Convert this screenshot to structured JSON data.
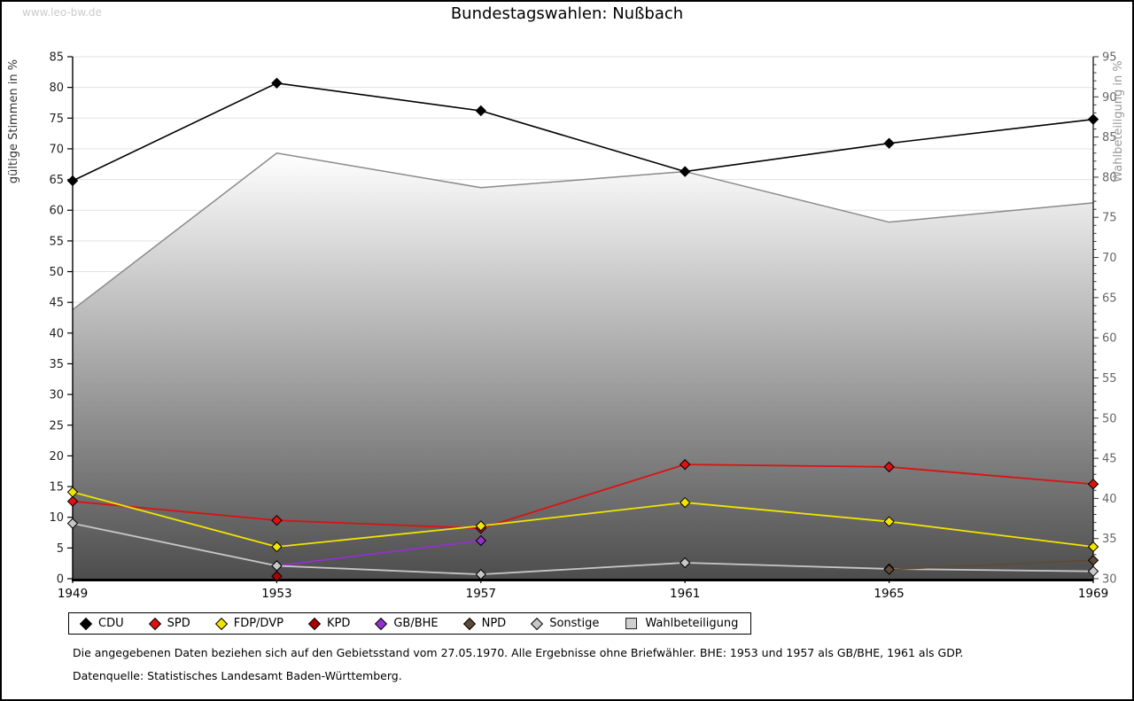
{
  "watermark": "www.leo-bw.de",
  "footnotes": {
    "line1": "Die angegebenen Daten beziehen sich auf den Gebietsstand vom 27.05.1970. Alle Ergebnisse ohne Briefwähler. BHE: 1953 und 1957 als GB/BHE, 1961 als GDP.",
    "line2": "Datenquelle: Statistisches Landesamt Baden-Württemberg."
  },
  "chart_data": {
    "type": "line",
    "title": "Bundestagswahlen: Nußbach",
    "categories": [
      "1949",
      "1953",
      "1957",
      "1961",
      "1965",
      "1969"
    ],
    "left_axis": {
      "label": "gültige Stimmen in %",
      "min": 0,
      "max": 85,
      "step": 5
    },
    "right_axis": {
      "label": "Wahlbeteiligung in %",
      "min": 30,
      "max": 95,
      "step": 5,
      "minor_step": 1
    },
    "grid": true,
    "legend_position": "bottom",
    "series": [
      {
        "name": "CDU",
        "axis": "left",
        "style": "line",
        "marker": "diamond",
        "color": "#000000",
        "values": [
          64.8,
          80.7,
          76.2,
          66.3,
          70.9,
          74.8
        ]
      },
      {
        "name": "SPD",
        "axis": "left",
        "style": "line",
        "marker": "diamond",
        "color": "#dd1111",
        "values": [
          12.6,
          9.5,
          8.2,
          18.6,
          18.2,
          15.4
        ]
      },
      {
        "name": "FDP/DVP",
        "axis": "left",
        "style": "line",
        "marker": "diamond",
        "color": "#f2e400",
        "values": [
          14.1,
          5.2,
          8.6,
          12.4,
          9.3,
          5.2
        ]
      },
      {
        "name": "KPD",
        "axis": "left",
        "style": "line",
        "marker": "diamond",
        "color": "#aa0000",
        "values": [
          null,
          0.4,
          null,
          null,
          null,
          null
        ]
      },
      {
        "name": "GB/BHE",
        "axis": "left",
        "style": "line",
        "marker": "diamond",
        "color": "#9231cc",
        "values": [
          null,
          2.1,
          6.2,
          null,
          null,
          null
        ]
      },
      {
        "name": "NPD",
        "axis": "left",
        "style": "line",
        "marker": "diamond",
        "color": "#5f4a36",
        "values": [
          null,
          null,
          null,
          null,
          1.5,
          3.0
        ]
      },
      {
        "name": "Sonstige",
        "axis": "left",
        "style": "line",
        "marker": "diamond",
        "color": "#c7c7c7",
        "values": [
          9.0,
          2.1,
          0.7,
          2.6,
          1.6,
          1.2
        ]
      },
      {
        "name": "Wahlbeteiligung",
        "axis": "right",
        "style": "area",
        "marker": "square",
        "color": "#8a8a8a",
        "values": [
          63.5,
          83.0,
          78.7,
          80.7,
          74.4,
          76.8
        ]
      }
    ]
  }
}
